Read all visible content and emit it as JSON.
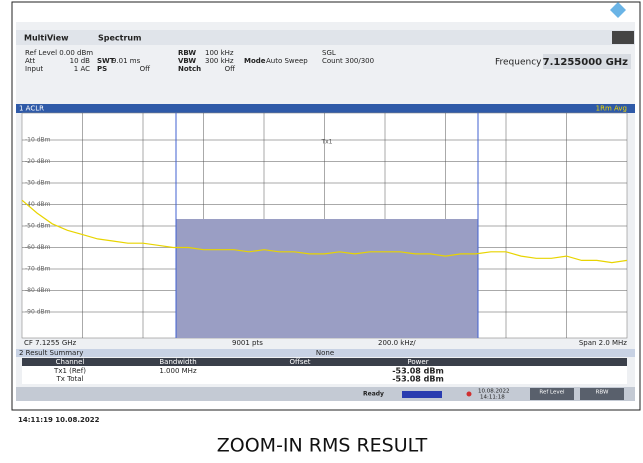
{
  "header": {
    "tabs": [
      "MultiView",
      "Spectrum"
    ]
  },
  "params": {
    "ref_level": "Ref Level 0.00 dBm",
    "att": "Att",
    "att_value": "10 dB",
    "input": "Input",
    "input_value": "1 AC",
    "swt": "SWT",
    "swt_value": "9.01 ms",
    "ps": "PS",
    "ps_value": "Off",
    "rbw": "RBW",
    "rbw_value": "100 kHz",
    "vbw": "VBW",
    "vbw_value": "300 kHz",
    "notch": "Notch",
    "notch_value": "Off",
    "mode": "Mode",
    "mode_value": "Auto Sweep",
    "sgl": "SGL",
    "count": "Count 300/300",
    "frequency": "Frequency",
    "frequency_value": "7.1255000 GHz"
  },
  "panel": {
    "title": "1 ACLR",
    "channel": "Tx1"
  },
  "chart_data": {
    "type": "line",
    "x": [
      7.1245,
      7.12455,
      7.1246,
      7.12465,
      7.1247,
      7.12475,
      7.1248,
      7.12485,
      7.1249,
      7.12495,
      7.125,
      7.12505,
      7.1251,
      7.12515,
      7.1252,
      7.12525,
      7.1253,
      7.12535,
      7.1254,
      7.12545,
      7.1255,
      7.12555,
      7.1256,
      7.12565,
      7.1257,
      7.12575,
      7.1258,
      7.12585,
      7.1259,
      7.12595,
      7.126,
      7.12605,
      7.1261,
      7.12615,
      7.1262,
      7.12625,
      7.1263,
      7.12635,
      7.1264,
      7.12645,
      7.1265
    ],
    "series": [
      {
        "name": "1Rm Avg",
        "color": "#e8d400",
        "values": [
          -38,
          -44,
          -49,
          -52,
          -54,
          -56,
          -57,
          -58,
          -58,
          -59,
          -60,
          -60,
          -61,
          -61,
          -61,
          -62,
          -61,
          -62,
          -62,
          -63,
          -63,
          -62,
          -63,
          -62,
          -62,
          -62,
          -63,
          -63,
          -64,
          -63,
          -63,
          -62,
          -62,
          -64,
          -65,
          -65,
          -64,
          -66,
          -66,
          -67,
          -66
        ]
      }
    ],
    "xlim": [
      7.1245,
      7.1265
    ],
    "ylim": [
      0,
      -100
    ],
    "yticks": [
      {
        "value": -10,
        "label": "-10 dBm"
      },
      {
        "value": -20,
        "label": "-20 dBm"
      },
      {
        "value": -30,
        "label": "-30 dBm"
      },
      {
        "value": -40,
        "label": "-40 dBm"
      },
      {
        "value": -50,
        "label": "-50 dBm"
      },
      {
        "value": -60,
        "label": "-60 dBm"
      },
      {
        "value": -70,
        "label": "-70 dBm"
      },
      {
        "value": -80,
        "label": "-80 dBm"
      },
      {
        "value": -90,
        "label": "-90 dBm"
      }
    ],
    "grid": true
  },
  "axis_footer": {
    "center": "CF 7.1255 GHz",
    "points": "9001 pts",
    "per_div": "200.0 kHz/",
    "span": "Span 2.0 MHz"
  },
  "result": {
    "title": "2 Result Summary",
    "mode": "None",
    "headers": [
      "Channel",
      "Bandwidth",
      "Offset",
      "Power"
    ],
    "rows": [
      {
        "channel": "Tx1 (Ref)",
        "bandwidth": "1.000 MHz",
        "power": "-53.08 dBm"
      },
      {
        "channel": "Tx Total",
        "power": "-53.08 dBm"
      }
    ]
  },
  "status": {
    "ready": "Ready",
    "date": "10.08.2022",
    "time": "14:11:18",
    "ref_level": "Ref Level",
    "rbw": "RBW"
  },
  "timestamp": "14:11:19 10.08.2022",
  "caption": "ZOOM-IN RMS RESULT"
}
